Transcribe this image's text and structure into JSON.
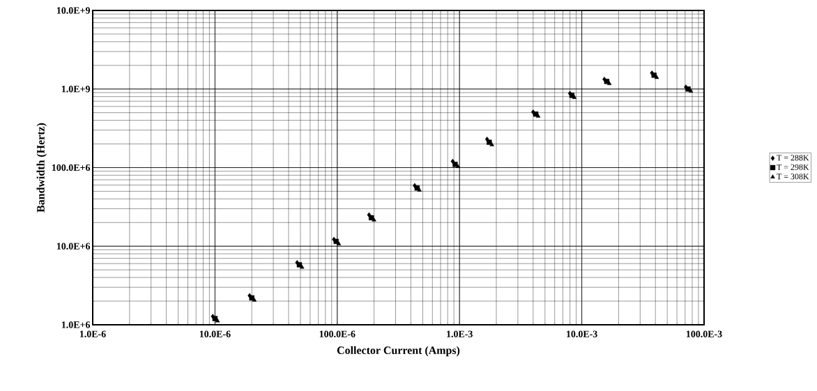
{
  "chart_data": {
    "type": "scatter",
    "xlabel": "Collector Current (Amps)",
    "ylabel": "Bandwidth (Hertz)",
    "x": [
      1e-05,
      2e-05,
      4.9e-05,
      9.8e-05,
      0.00019,
      0.00045,
      0.00092,
      0.00175,
      0.0042,
      0.0083,
      0.016,
      0.039,
      0.074
    ],
    "series": [
      {
        "name": "T = 288K",
        "color": "#000000",
        "marker": "diamond",
        "x": [
          9.6e-06,
          1.92e-05,
          4.7e-05,
          9.4e-05,
          0.000182,
          0.00043,
          0.00088,
          0.00168,
          0.004,
          0.008,
          0.0153,
          0.0375,
          0.071
        ],
        "values": [
          1280000.0,
          2350000.0,
          6200000.0,
          12200000.0,
          25000000.0,
          59000000.0,
          120000000.0,
          230000000.0,
          510000000.0,
          880000000.0,
          1330000000.0,
          1600000000.0,
          1060000000.0
        ]
      },
      {
        "name": "T = 298K",
        "color": "#000000",
        "marker": "square",
        "values": [
          1200000.0,
          2200000.0,
          5800000.0,
          11500000.0,
          23000000.0,
          55000000.0,
          110000000.0,
          210000000.0,
          480000000.0,
          830000000.0,
          1250000000.0,
          1500000000.0,
          1000000000.0
        ]
      },
      {
        "name": "T = 308K",
        "color": "#000000",
        "marker": "triangle",
        "x": [
          1.05e-05,
          2.1e-05,
          5.15e-05,
          0.000103,
          0.0002,
          0.00047,
          0.00097,
          0.00184,
          0.0044,
          0.0087,
          0.0168,
          0.041,
          0.078
        ],
        "values": [
          1120000.0,
          2050000.0,
          5400000.0,
          10700000.0,
          21500000.0,
          51500000.0,
          103000000.0,
          195000000.0,
          450000000.0,
          780000000.0,
          1170000000.0,
          1400000000.0,
          940000000.0
        ]
      }
    ],
    "xlim": [
      1e-06,
      0.1
    ],
    "ylim": [
      1000000.0,
      10000000000.0
    ],
    "xticks": [
      {
        "value": 1e-06,
        "label": "1.0E-6"
      },
      {
        "value": 1e-05,
        "label": "10.0E-6"
      },
      {
        "value": 0.0001,
        "label": "100.0E-6"
      },
      {
        "value": 0.001,
        "label": "1.0E-3"
      },
      {
        "value": 0.01,
        "label": "10.0E-3"
      },
      {
        "value": 0.1,
        "label": "100.0E-3"
      }
    ],
    "yticks": [
      {
        "value": 1000000.0,
        "label": "1.0E+6"
      },
      {
        "value": 10000000.0,
        "label": "10.0E+6"
      },
      {
        "value": 100000000.0,
        "label": "100.0E+6"
      },
      {
        "value": 1000000000.0,
        "label": "1.0E+9"
      },
      {
        "value": 10000000000.0,
        "label": "10.0E+9"
      }
    ],
    "log": "xy",
    "grid": true,
    "legend": "right"
  }
}
